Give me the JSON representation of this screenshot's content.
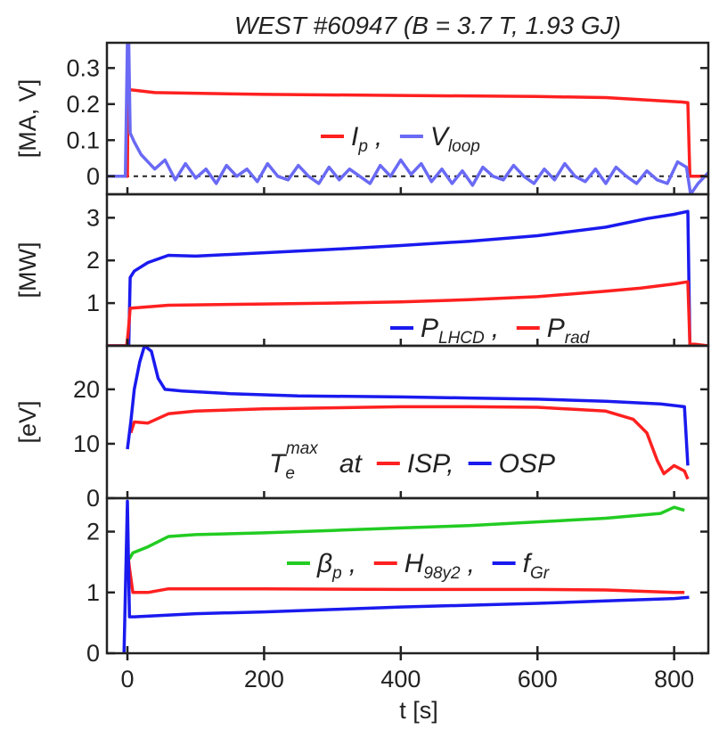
{
  "title": "WEST #60947 (B = 3.7 T, 1.93 GJ)",
  "xlabel": "t [s]",
  "x_ticks": [
    "0",
    "200",
    "400",
    "600",
    "800"
  ],
  "chart_data": [
    {
      "type": "line",
      "ylabel": "[MA, V]",
      "xlim": [
        -30,
        850
      ],
      "ylim": [
        -0.05,
        0.37
      ],
      "y_ticks": [
        "0",
        "0.1",
        "0.2",
        "0.3"
      ],
      "legend": {
        "comma": ",",
        "items": [
          {
            "main": "I",
            "sub": "p"
          },
          {
            "main": "V",
            "sub": "loop"
          }
        ]
      },
      "series": [
        {
          "name": "Ip",
          "color": "#ff2020",
          "points": [
            [
              -30,
              0
            ],
            [
              0,
              0
            ],
            [
              1,
              0.31
            ],
            [
              3,
              0.24
            ],
            [
              40,
              0.232
            ],
            [
              200,
              0.227
            ],
            [
              400,
              0.224
            ],
            [
              600,
              0.221
            ],
            [
              700,
              0.218
            ],
            [
              810,
              0.206
            ],
            [
              820,
              0.204
            ],
            [
              823,
              0
            ],
            [
              850,
              0
            ]
          ]
        },
        {
          "name": "Vloop",
          "color": "#6a6af5",
          "points": [
            [
              -30,
              0
            ],
            [
              -3,
              0
            ],
            [
              0,
              0.37
            ],
            [
              2,
              0.37
            ],
            [
              4,
              0.12
            ],
            [
              10,
              0.095
            ],
            [
              20,
              0.06
            ],
            [
              30,
              0.04
            ],
            [
              40,
              0.02
            ],
            [
              55,
              0.045
            ],
            [
              70,
              -0.01
            ],
            [
              85,
              0.035
            ],
            [
              100,
              -0.005
            ],
            [
              115,
              0.02
            ],
            [
              130,
              -0.02
            ],
            [
              145,
              0.03
            ],
            [
              160,
              0.0
            ],
            [
              175,
              0.02
            ],
            [
              190,
              -0.015
            ],
            [
              205,
              0.035
            ],
            [
              220,
              0.0
            ],
            [
              235,
              -0.01
            ],
            [
              250,
              0.03
            ],
            [
              265,
              0.0
            ],
            [
              280,
              -0.02
            ],
            [
              295,
              0.025
            ],
            [
              310,
              -0.01
            ],
            [
              325,
              0.02
            ],
            [
              340,
              0.0
            ],
            [
              355,
              -0.02
            ],
            [
              370,
              0.03
            ],
            [
              385,
              0.0
            ],
            [
              400,
              0.045
            ],
            [
              415,
              0.005
            ],
            [
              430,
              0.035
            ],
            [
              445,
              -0.015
            ],
            [
              460,
              0.02
            ],
            [
              475,
              -0.02
            ],
            [
              490,
              0.015
            ],
            [
              505,
              -0.025
            ],
            [
              520,
              0.025
            ],
            [
              535,
              0.0
            ],
            [
              550,
              -0.01
            ],
            [
              565,
              0.03
            ],
            [
              580,
              0.0
            ],
            [
              595,
              -0.02
            ],
            [
              610,
              0.02
            ],
            [
              625,
              -0.01
            ],
            [
              640,
              0.035
            ],
            [
              655,
              0.0
            ],
            [
              670,
              -0.015
            ],
            [
              685,
              0.02
            ],
            [
              700,
              -0.02
            ],
            [
              715,
              0.025
            ],
            [
              730,
              0.0
            ],
            [
              745,
              -0.02
            ],
            [
              760,
              0.015
            ],
            [
              775,
              -0.01
            ],
            [
              790,
              -0.02
            ],
            [
              805,
              0.04
            ],
            [
              818,
              0.025
            ],
            [
              824,
              -0.05
            ],
            [
              835,
              -0.02
            ],
            [
              850,
              0.01
            ]
          ]
        }
      ]
    },
    {
      "type": "line",
      "ylabel": "[MW]",
      "xlim": [
        -30,
        850
      ],
      "ylim": [
        0,
        3.55
      ],
      "y_ticks": [
        "1",
        "2",
        "3"
      ],
      "legend": {
        "comma": ",",
        "items": [
          {
            "main": "P",
            "sub": "LHCD"
          },
          {
            "main": "P",
            "sub": "rad"
          }
        ]
      },
      "series": [
        {
          "name": "PLHCD",
          "color": "#1a1aef",
          "points": [
            [
              -30,
              0
            ],
            [
              2,
              0
            ],
            [
              4,
              1.6
            ],
            [
              10,
              1.75
            ],
            [
              30,
              1.95
            ],
            [
              60,
              2.12
            ],
            [
              100,
              2.1
            ],
            [
              200,
              2.18
            ],
            [
              300,
              2.26
            ],
            [
              400,
              2.35
            ],
            [
              500,
              2.45
            ],
            [
              600,
              2.58
            ],
            [
              700,
              2.78
            ],
            [
              760,
              2.98
            ],
            [
              800,
              3.08
            ],
            [
              820,
              3.15
            ],
            [
              823,
              0
            ],
            [
              850,
              0
            ]
          ]
        },
        {
          "name": "Prad",
          "color": "#ff2020",
          "points": [
            [
              -30,
              0
            ],
            [
              -10,
              0
            ],
            [
              -1,
              0
            ],
            [
              1,
              0.3
            ],
            [
              4,
              0.88
            ],
            [
              60,
              0.95
            ],
            [
              200,
              0.98
            ],
            [
              300,
              1.0
            ],
            [
              400,
              1.03
            ],
            [
              500,
              1.08
            ],
            [
              600,
              1.15
            ],
            [
              700,
              1.28
            ],
            [
              750,
              1.35
            ],
            [
              800,
              1.45
            ],
            [
              820,
              1.5
            ],
            [
              823,
              0.05
            ],
            [
              850,
              0
            ]
          ]
        }
      ]
    },
    {
      "type": "line",
      "ylabel": "[eV]",
      "xlim": [
        -30,
        850
      ],
      "ylim": [
        0,
        28
      ],
      "y_ticks": [
        "0",
        "10",
        "20"
      ],
      "legend": {
        "at": "at",
        "items": [
          {
            "main": "T",
            "sub": "e",
            "sup": "max"
          },
          {
            "main": "ISP,"
          },
          {
            "main": "OSP"
          }
        ]
      },
      "series": [
        {
          "name": "ISP",
          "color": "#ff2020",
          "points": [
            [
              5,
              12
            ],
            [
              10,
              14
            ],
            [
              30,
              13.8
            ],
            [
              60,
              15.5
            ],
            [
              100,
              16
            ],
            [
              200,
              16.4
            ],
            [
              300,
              16.6
            ],
            [
              400,
              16.8
            ],
            [
              500,
              16.8
            ],
            [
              600,
              16.7
            ],
            [
              700,
              16
            ],
            [
              740,
              14.5
            ],
            [
              760,
              12
            ],
            [
              775,
              7
            ],
            [
              785,
              4.5
            ],
            [
              800,
              6
            ],
            [
              815,
              5
            ],
            [
              820,
              3.5
            ]
          ]
        },
        {
          "name": "OSP",
          "color": "#1a1aef",
          "points": [
            [
              0,
              9
            ],
            [
              5,
              14
            ],
            [
              10,
              20
            ],
            [
              18,
              25
            ],
            [
              25,
              28
            ],
            [
              35,
              27
            ],
            [
              45,
              22
            ],
            [
              55,
              20
            ],
            [
              80,
              19.7
            ],
            [
              150,
              19.2
            ],
            [
              250,
              18.8
            ],
            [
              400,
              18.6
            ],
            [
              500,
              18.4
            ],
            [
              600,
              18.2
            ],
            [
              700,
              17.8
            ],
            [
              780,
              17.3
            ],
            [
              815,
              16.8
            ],
            [
              820,
              6
            ]
          ]
        }
      ]
    },
    {
      "type": "line",
      "xlim": [
        -30,
        850
      ],
      "ylim": [
        0,
        2.55
      ],
      "y_ticks": [
        "0",
        "1",
        "2"
      ],
      "legend": {
        "comma": ",",
        "items": [
          {
            "main": "β",
            "sub": "p"
          },
          {
            "main": "H",
            "sub": "98y2"
          },
          {
            "main": "f",
            "sub": "Gr"
          }
        ]
      },
      "series": [
        {
          "name": "βp",
          "color": "#22cc22",
          "points": [
            [
              3,
              1.55
            ],
            [
              8,
              1.65
            ],
            [
              30,
              1.75
            ],
            [
              60,
              1.92
            ],
            [
              100,
              1.95
            ],
            [
              200,
              1.98
            ],
            [
              300,
              2.02
            ],
            [
              400,
              2.06
            ],
            [
              500,
              2.1
            ],
            [
              600,
              2.16
            ],
            [
              700,
              2.22
            ],
            [
              780,
              2.3
            ],
            [
              800,
              2.4
            ],
            [
              815,
              2.35
            ]
          ]
        },
        {
          "name": "H98y2",
          "color": "#ff2020",
          "points": [
            [
              0,
              1.7
            ],
            [
              3,
              1.4
            ],
            [
              8,
              1.0
            ],
            [
              30,
              1.0
            ],
            [
              60,
              1.06
            ],
            [
              200,
              1.06
            ],
            [
              400,
              1.05
            ],
            [
              600,
              1.05
            ],
            [
              700,
              1.04
            ],
            [
              800,
              1.0
            ],
            [
              815,
              1.0
            ]
          ]
        },
        {
          "name": "fGr",
          "color": "#1a1aef",
          "points": [
            [
              -5,
              0
            ],
            [
              0,
              2.5
            ],
            [
              3,
              0.6
            ],
            [
              10,
              0.6
            ],
            [
              100,
              0.65
            ],
            [
              200,
              0.68
            ],
            [
              300,
              0.72
            ],
            [
              400,
              0.76
            ],
            [
              500,
              0.79
            ],
            [
              600,
              0.82
            ],
            [
              700,
              0.86
            ],
            [
              800,
              0.9
            ],
            [
              822,
              0.92
            ]
          ]
        }
      ]
    }
  ]
}
